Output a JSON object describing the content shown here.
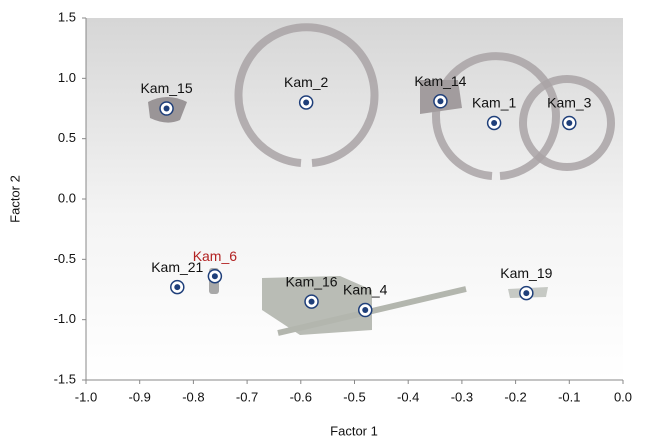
{
  "chart_data": {
    "type": "scatter",
    "x_label": "Factor 1",
    "y_label": "Factor 2",
    "x": [
      -0.85,
      -0.59,
      -0.34,
      -0.24,
      -0.1,
      -0.83,
      -0.76,
      -0.58,
      -0.48,
      -0.18
    ],
    "values": [
      0.75,
      0.8,
      0.81,
      0.63,
      0.63,
      -0.73,
      -0.64,
      -0.85,
      -0.92,
      -0.78
    ],
    "point_labels": [
      "Kam_15",
      "Kam_2",
      "Kam_14",
      "Kam_1",
      "Kam_3",
      "Kam_21",
      "Kam_6",
      "Kam_16",
      "Kam_4",
      "Kam_19"
    ],
    "label_colors": [
      "#111111",
      "#111111",
      "#111111",
      "#111111",
      "#111111",
      "#111111",
      "#b22222",
      "#111111",
      "#111111",
      "#111111"
    ],
    "color": "#1f3f7a",
    "xlim": [
      -1.0,
      0.0
    ],
    "xticks": [
      {
        "value": -1.0,
        "label": "-1.0"
      },
      -0.9,
      -0.8,
      -0.7,
      -0.6,
      -0.5,
      -0.4,
      -0.3,
      -0.2,
      -0.1,
      {
        "value": 0.0,
        "label": "0.0"
      }
    ],
    "ylim": [
      -1.5,
      1.5
    ],
    "yticks": [
      1.5,
      {
        "value": 1.0,
        "label": "1.0"
      },
      0.5,
      {
        "value": 0.0,
        "label": "0.0"
      },
      -0.5,
      {
        "value": -1.0,
        "label": "-1.0"
      },
      -1.5
    ]
  }
}
